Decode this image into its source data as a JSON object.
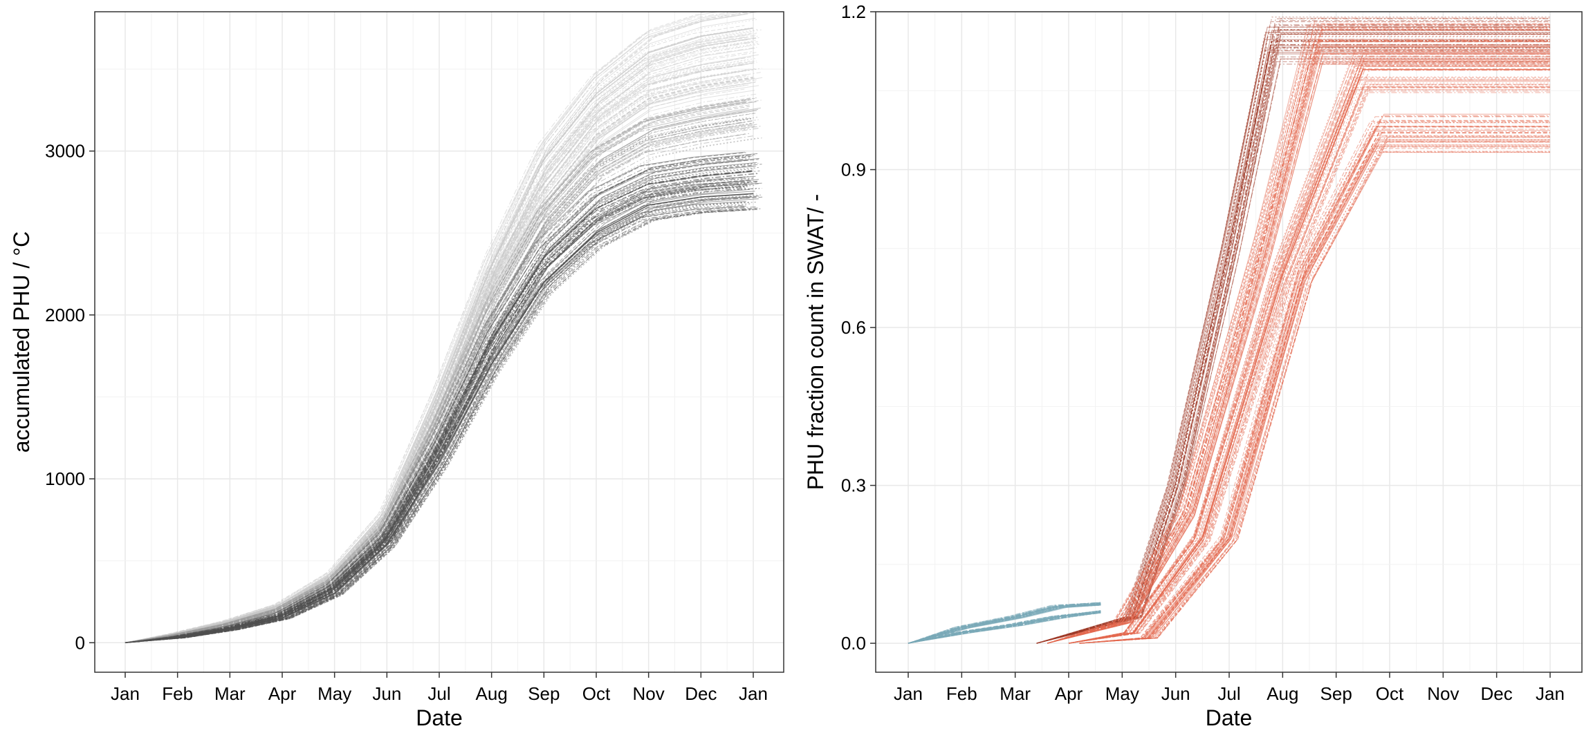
{
  "chart_data": [
    {
      "type": "line",
      "xlabel": "Date",
      "ylabel": "accumulated PHU / °C",
      "x_ticks": [
        "Jan",
        "Feb",
        "Mar",
        "Apr",
        "May",
        "Jun",
        "Jul",
        "Aug",
        "Sep",
        "Oct",
        "Nov",
        "Dec",
        "Jan"
      ],
      "y_ticks": [
        "0",
        "1000",
        "2000",
        "3000"
      ],
      "xlim": [
        "Jan",
        "Jan"
      ],
      "ylim": [
        -180,
        3850
      ],
      "grid": true,
      "legend": "none",
      "colors": {
        "light": "#c9c9c9",
        "mid": "#9a9a9a",
        "dark": "#505050"
      },
      "series": [
        {
          "color": "light",
          "values": [
            0,
            55,
            130,
            230,
            420,
            780,
            1500,
            2300,
            2950,
            3350,
            3600,
            3700,
            3750
          ]
        },
        {
          "color": "light",
          "values": [
            0,
            50,
            120,
            210,
            390,
            730,
            1400,
            2150,
            2700,
            3100,
            3320,
            3400,
            3450
          ]
        },
        {
          "color": "mid",
          "values": [
            0,
            45,
            110,
            200,
            370,
            690,
            1300,
            2000,
            2550,
            2900,
            3080,
            3150,
            3200
          ]
        },
        {
          "color": "dark",
          "values": [
            0,
            35,
            90,
            170,
            340,
            640,
            1200,
            1850,
            2350,
            2650,
            2800,
            2850,
            2880
          ]
        },
        {
          "color": "dark",
          "values": [
            0,
            30,
            80,
            150,
            300,
            600,
            1100,
            1700,
            2200,
            2500,
            2670,
            2720,
            2740
          ]
        }
      ]
    },
    {
      "type": "line",
      "xlabel": "Date",
      "ylabel": "PHU fraction count in SWAT/ -",
      "x_ticks": [
        "Jan",
        "Feb",
        "Mar",
        "Apr",
        "May",
        "Jun",
        "Jul",
        "Aug",
        "Sep",
        "Oct",
        "Nov",
        "Dec",
        "Jan"
      ],
      "y_ticks": [
        "0.0",
        "0.3",
        "0.6",
        "0.9",
        "1.2"
      ],
      "xlim": [
        "Jan",
        "Jan"
      ],
      "ylim": [
        -0.055,
        1.2
      ],
      "grid": true,
      "legend": "none",
      "colors": {
        "blue": "#7aaab8",
        "red": "#e46a50",
        "dark_red": "#9e3a28"
      },
      "series": [
        {
          "color": "blue",
          "x_months": [
            0,
            1,
            2,
            2.8,
            3.6
          ],
          "values": [
            0,
            0.03,
            0.05,
            0.07,
            0.075
          ]
        },
        {
          "color": "blue",
          "x_months": [
            0,
            1,
            2,
            2.8,
            3.6
          ],
          "values": [
            0,
            0.02,
            0.035,
            0.05,
            0.06
          ]
        },
        {
          "color": "dark_red",
          "x_months": [
            2.4,
            4.2,
            5.0,
            6.0,
            6.8,
            12.0
          ],
          "values": [
            0,
            0.05,
            0.3,
            0.75,
            1.145,
            1.145
          ]
        },
        {
          "color": "red",
          "x_months": [
            2.6,
            4.0,
            5.2,
            6.6,
            7.6,
            12.0
          ],
          "values": [
            0,
            0.04,
            0.25,
            0.75,
            1.145,
            1.145
          ]
        },
        {
          "color": "red",
          "x_months": [
            3.0,
            4.2,
            5.5,
            7.0,
            8.5,
            12.0
          ],
          "values": [
            0,
            0.02,
            0.2,
            0.7,
            1.09,
            1.09
          ]
        },
        {
          "color": "red",
          "x_months": [
            3.2,
            4.5,
            6.0,
            7.4,
            8.8,
            12.0
          ],
          "values": [
            0,
            0.01,
            0.2,
            0.7,
            0.97,
            0.97
          ]
        }
      ]
    }
  ]
}
